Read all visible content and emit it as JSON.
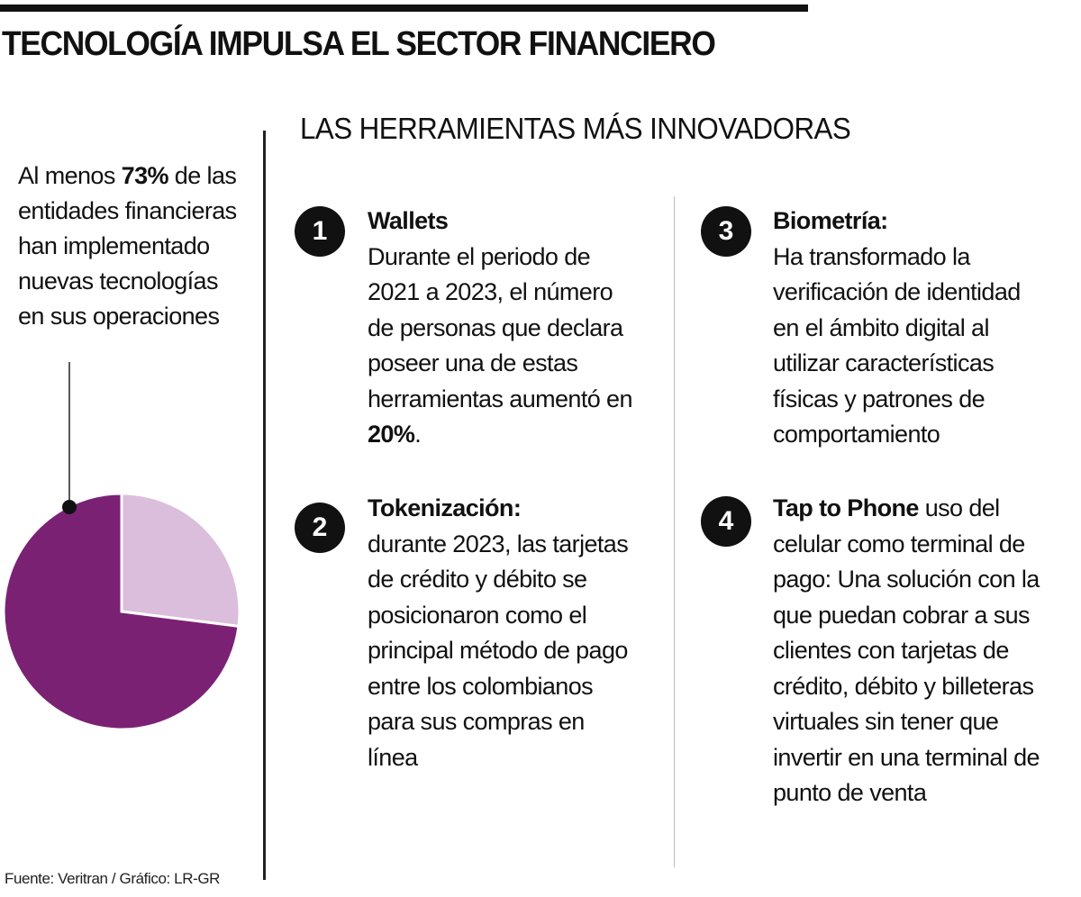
{
  "header": {
    "title": "TECNOLOGÍA IMPULSA EL SECTOR FINANCIERO",
    "subtitle": "LAS HERRAMIENTAS MÁS INNOVADORAS"
  },
  "stat": {
    "prefix": "Al menos ",
    "highlight": "73%",
    "suffix": " de las entidades financieras han implementado nuevas tecnologías en sus operaciones"
  },
  "chart_data": {
    "type": "pie",
    "slices": [
      {
        "label": "73%",
        "value": 73,
        "color": "#7b2174"
      },
      {
        "label": "",
        "value": 27,
        "color": "#dbbddc"
      }
    ]
  },
  "items": [
    {
      "number": "1",
      "title": "Wallets",
      "body_pre": "Durante el periodo de 2021 a 2023, el número de personas que declara poseer una de estas herramientas aumentó en ",
      "body_bold": "20%",
      "body_post": "."
    },
    {
      "number": "2",
      "title": "Tokenización:",
      "body_pre": "durante 2023, las tarjetas de crédito y débito se posicionaron como el principal método de pago entre los colombianos para sus compras en línea",
      "body_bold": "",
      "body_post": ""
    },
    {
      "number": "3",
      "title": "Biometría:",
      "body_pre": "Ha transformado la verificación de identidad en el ámbito digital al utilizar características físicas y patrones de comportamiento",
      "body_bold": "",
      "body_post": ""
    },
    {
      "number": "4",
      "title": "Tap to Phone",
      "body_pre": " uso del celular como terminal de pago: Una solución con la que puedan cobrar a sus clientes con tarjetas de crédito, débito y billeteras virtuales sin tener que invertir en una terminal de punto de venta",
      "body_bold": "",
      "body_post": ""
    }
  ],
  "footer": {
    "source": "Fuente: Veritran / Gráfico: LR-GR"
  }
}
